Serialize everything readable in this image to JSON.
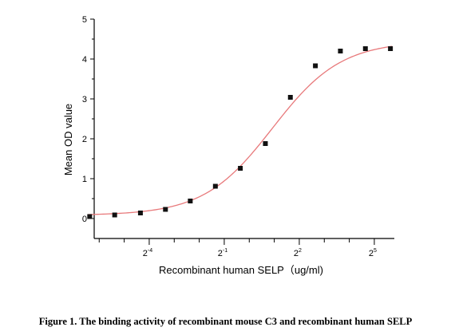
{
  "caption": "Figure 1. The binding activity of recombinant mouse C3 and recombinant human SELP",
  "chart_data": {
    "type": "scatter",
    "title": "",
    "xlabel": "Recombinant human SELP（ug/ml)",
    "ylabel": "Mean OD value",
    "x_scale": "log2",
    "xlim_log2": [
      -6.2,
      5.8
    ],
    "ylim": [
      -0.5,
      5
    ],
    "y_ticks": [
      0,
      1,
      2,
      3,
      4,
      5
    ],
    "x_tick_labels": [
      {
        "base": "2",
        "exp": "-4",
        "log2": -4
      },
      {
        "base": "2",
        "exp": "-1",
        "log2": -1
      },
      {
        "base": "2",
        "exp": "2",
        "log2": 2
      },
      {
        "base": "2",
        "exp": "5",
        "log2": 5
      }
    ],
    "series": [
      {
        "x": [
          0.012,
          0.024,
          0.049,
          0.098,
          0.195,
          0.391,
          0.781,
          1.563,
          3.125,
          6.25,
          12.5,
          25,
          50
        ],
        "y": [
          0.05,
          0.09,
          0.14,
          0.23,
          0.44,
          0.81,
          1.26,
          1.88,
          3.04,
          3.83,
          4.2,
          4.26,
          4.26
        ],
        "marker": "square",
        "color": "#111111"
      }
    ],
    "fit_curve": {
      "type": "4PL",
      "bottom": 0.08,
      "top": 4.45,
      "ec50": 1.9,
      "hill": 1.05,
      "color": "#e8797b"
    },
    "grid": false,
    "legend": "none"
  }
}
